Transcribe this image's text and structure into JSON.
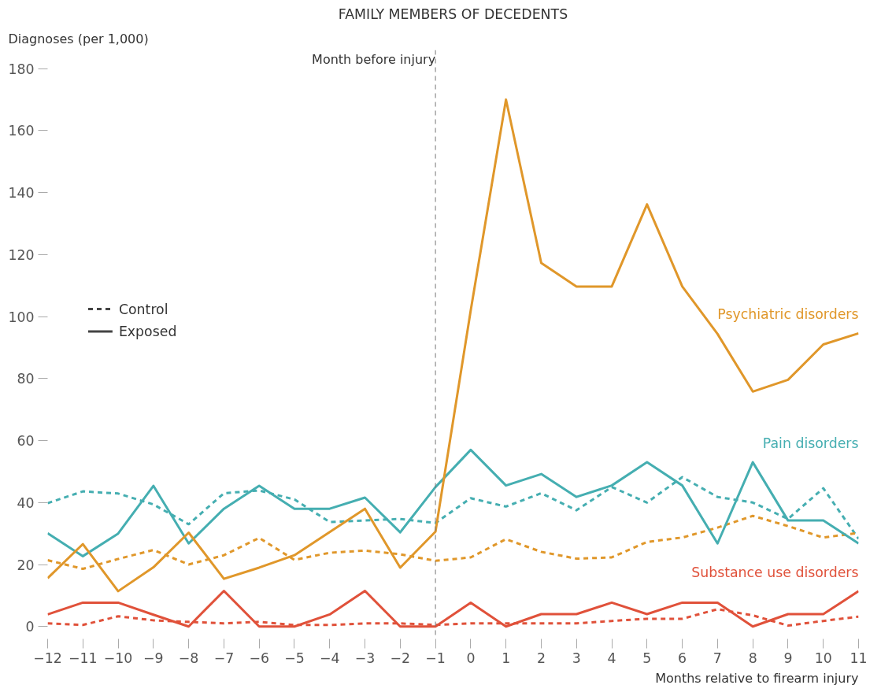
{
  "chart_data": {
    "type": "line",
    "title": "FAMILY MEMBERS OF DECEDENTS",
    "ylabel": "Diagnoses (per 1,000)",
    "xlabel": "Months relative to firearm injury",
    "x": [
      -12,
      -11,
      -10,
      -9,
      -8,
      -7,
      -6,
      -5,
      -4,
      -3,
      -2,
      -1,
      0,
      1,
      2,
      3,
      4,
      5,
      6,
      7,
      8,
      9,
      10,
      11
    ],
    "xlim": [
      -12,
      11
    ],
    "xticks": [
      {
        "value": -12,
        "label": "−12"
      },
      {
        "value": -11,
        "label": "−11"
      },
      {
        "value": -10,
        "label": "−10"
      },
      {
        "value": -9,
        "label": "−9"
      },
      {
        "value": -8,
        "label": "−8"
      },
      {
        "value": -7,
        "label": "−7"
      },
      {
        "value": -6,
        "label": "−6"
      },
      {
        "value": -5,
        "label": "−5"
      },
      {
        "value": -4,
        "label": "−4"
      },
      {
        "value": -3,
        "label": "−3"
      },
      {
        "value": -2,
        "label": "−2"
      },
      {
        "value": -1,
        "label": "−1"
      },
      0,
      1,
      2,
      3,
      4,
      5,
      6,
      7,
      8,
      9,
      10,
      11
    ],
    "ylim": [
      -4,
      186
    ],
    "yticks": [
      0,
      20,
      40,
      60,
      80,
      100,
      120,
      140,
      160,
      180
    ],
    "series": [
      {
        "color": "#45aeb1",
        "line_style": "dashed",
        "values": [
          39.8,
          43.6,
          42.9,
          39.4,
          33,
          43,
          43.9,
          41,
          33.7,
          34.2,
          34.7,
          33.4,
          41.4,
          38.7,
          43,
          37.5,
          45,
          40,
          48.2,
          41.8,
          40,
          34.7,
          44.6,
          28.3
        ]
      },
      {
        "color": "#e0972a",
        "line_style": "dashed",
        "values": [
          21.4,
          18.6,
          21.8,
          24.7,
          20,
          23,
          28.6,
          21.5,
          23.8,
          24.5,
          23.3,
          21.2,
          22.3,
          28.2,
          24.1,
          21.9,
          22.3,
          27.3,
          28.7,
          31.9,
          35.7,
          32.4,
          28.7,
          30.2
        ]
      },
      {
        "color": "#e0513a",
        "line_style": "dashed",
        "values": [
          1,
          0.5,
          3.3,
          2,
          1.5,
          1,
          1.5,
          0.5,
          0.5,
          1,
          1,
          0.5,
          1,
          1,
          1,
          1,
          1.8,
          2.5,
          2.5,
          5.6,
          3.6,
          0.3,
          1.8,
          3.2
        ]
      },
      {
        "name": "Pain disorders",
        "color": "#45aeb1",
        "line_style": "solid",
        "values": [
          30.1,
          22.7,
          30,
          45.4,
          26.8,
          38,
          45.4,
          38,
          38,
          41.6,
          30.4,
          45,
          57,
          45.5,
          49.2,
          41.8,
          45.5,
          53,
          45.5,
          26.8,
          53,
          34.2,
          34.2,
          26.8
        ]
      },
      {
        "name": "Psychiatric disorders",
        "color": "#e0972a",
        "line_style": "solid",
        "values": [
          15.6,
          26.6,
          11.4,
          19.1,
          30.3,
          15.4,
          19,
          23,
          30.5,
          38,
          19,
          30.6,
          102,
          170,
          117.3,
          109.7,
          109.7,
          136.2,
          109.7,
          94.4,
          75.8,
          79.6,
          91,
          94.6
        ]
      },
      {
        "name": "Substance use disorders",
        "color": "#e0513a",
        "line_style": "solid",
        "values": [
          3.9,
          7.7,
          7.7,
          3.8,
          0,
          11.5,
          0,
          0,
          3.9,
          11.5,
          0,
          0,
          7.7,
          0,
          4,
          4,
          7.7,
          4,
          7.7,
          7.7,
          0,
          4,
          4,
          11.4
        ]
      }
    ],
    "ref_lines": [
      {
        "axis": "x",
        "value": -1,
        "label": "Month before injury",
        "color": "#777777",
        "line_style": "dashed"
      }
    ],
    "annotations": [
      "Control",
      "Exposed"
    ],
    "grid": false,
    "marker": "none"
  }
}
